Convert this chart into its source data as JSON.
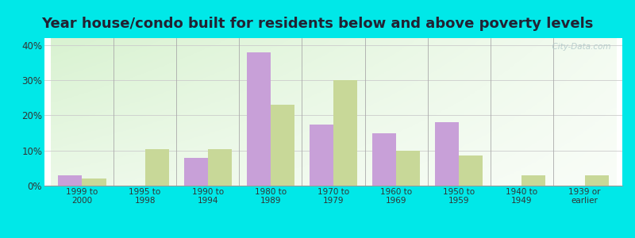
{
  "title": "Year house/condo built for residents below and above poverty levels",
  "categories": [
    "1999 to\n2000",
    "1995 to\n1998",
    "1990 to\n1994",
    "1980 to\n1989",
    "1970 to\n1979",
    "1960 to\n1969",
    "1950 to\n1959",
    "1940 to\n1949",
    "1939 or\nearlier"
  ],
  "below_poverty": [
    3.0,
    0.0,
    8.0,
    38.0,
    17.5,
    15.0,
    18.0,
    0.0,
    0.0
  ],
  "above_poverty": [
    2.0,
    10.5,
    10.5,
    23.0,
    30.0,
    10.0,
    8.5,
    3.0,
    3.0
  ],
  "below_color": "#c8a0d8",
  "above_color": "#c8d898",
  "ylim_max": 42,
  "yticks": [
    0,
    10,
    20,
    30,
    40
  ],
  "ytick_labels": [
    "0%",
    "10%",
    "20%",
    "30%",
    "40%"
  ],
  "background_outer": "#00e8e8",
  "title_fontsize": 13,
  "bar_width": 0.38,
  "watermark": "  City-Data.com"
}
